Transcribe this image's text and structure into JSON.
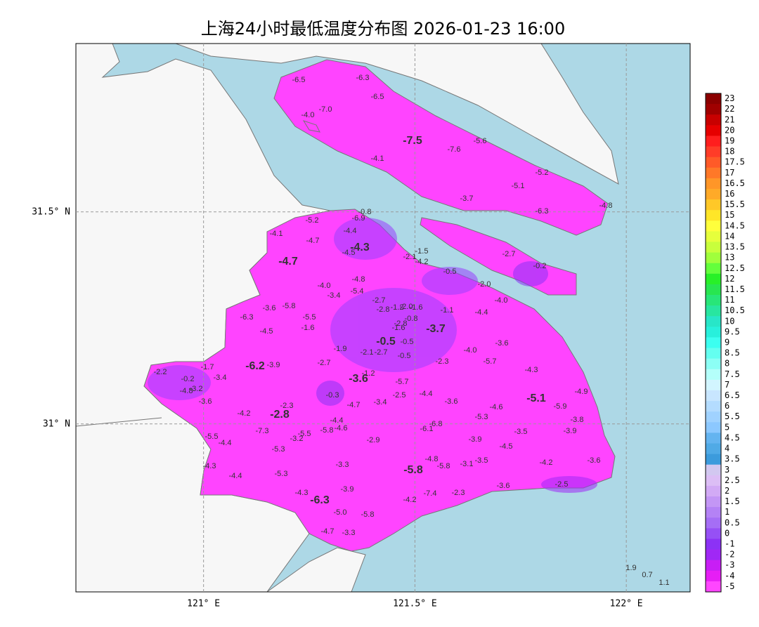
{
  "map": {
    "title": "上海24小时最低温度分布图 2026-01-23 16:00",
    "xlim": [
      120.698,
      122.151
    ],
    "ylim": [
      30.604,
      31.897
    ],
    "xticks": [
      {
        "value": 121,
        "label": "121° E"
      },
      {
        "value": 121.5,
        "label": "121.5° E"
      },
      {
        "value": 122,
        "label": "122° E"
      }
    ],
    "yticks": [
      {
        "value": 31,
        "label": "31° N"
      },
      {
        "value": 31.5,
        "label": "31.5° N"
      }
    ],
    "grid": true,
    "stations": [
      "-6.5",
      "-6.3",
      "-6.5",
      "-7.0",
      "-4.0",
      "-7.5",
      "-7.6",
      "-5.6",
      "-4.1",
      "-5.2",
      "-5.1",
      "-3.7",
      "-6.3",
      "-4.8",
      "-0.8",
      "-6.9",
      "-5.2",
      "-4.4",
      "-4.1",
      "-4.7",
      "-4.3",
      "-4.5",
      "-1.5",
      "-2.1",
      "-4.2",
      "-2.7",
      "-0.2",
      "-4.7",
      "-0.5",
      "-4.8",
      "-4.0",
      "-5.4",
      "-3.4",
      "-2.0",
      "-2.7",
      "-4.0",
      "-3.6",
      "-5.8",
      "-2.8",
      "-1.2",
      "-2.0",
      "-1.6",
      "-1.1",
      "-4.4",
      "-6.3",
      "-5.5",
      "-2.8",
      "-0.8",
      "-1.6",
      "-1.6",
      "-4.5",
      "-3.7",
      "-0.5",
      "-0.5",
      "-1.9",
      "-2.1",
      "-2.7",
      "-0.5",
      "-4.0",
      "-3.6",
      "-5.7",
      "-2.3",
      "-4.3",
      "-2.2",
      "-1.7",
      "-6.2",
      "-3.9",
      "-2.7",
      "-3.4",
      "-0.2",
      "-3.6",
      "-1.2",
      "-5.7",
      "-4.8",
      "-3.2",
      "-0.3",
      "-2.5",
      "-4.4",
      "-4.9",
      "-5.1",
      "-3.6",
      "-2.3",
      "-4.7",
      "-3.4",
      "-3.6",
      "-4.6",
      "-5.9",
      "-4.2",
      "-2.8",
      "-5.3",
      "-3.8",
      "-4.4",
      "-6.8",
      "-5.8",
      "-4.6",
      "-6.1",
      "-7.3",
      "-5.5",
      "-3.2",
      "-5.5",
      "-4.4",
      "-3.5",
      "-3.9",
      "-2.9",
      "-3.9",
      "-4.5",
      "-5.3",
      "-4.8",
      "-3.3",
      "-5.8",
      "-5.8",
      "-3.1",
      "-3.5",
      "-4.2",
      "-3.6",
      "-4.3",
      "-4.4",
      "-5.3",
      "-3.9",
      "-3.6",
      "-2.5",
      "-4.3",
      "-7.4",
      "-2.3",
      "-6.3",
      "-4.2",
      "-5.0",
      "-5.8",
      "-4.7",
      "-3.3",
      "1.9",
      "0.7",
      "1.1"
    ],
    "colorbar": {
      "ticks": [
        23,
        22,
        21,
        20,
        19,
        18,
        17.5,
        17,
        16.5,
        16,
        15.5,
        15,
        14.5,
        14,
        13.5,
        13,
        12.5,
        12,
        11.5,
        11,
        10.5,
        10,
        9.5,
        9,
        8.5,
        8,
        7.5,
        7,
        6.5,
        6,
        5.5,
        5,
        4.5,
        4,
        3.5,
        3,
        2.5,
        2,
        1.5,
        1,
        0.5,
        0,
        -1,
        -2,
        -3,
        -4,
        -5
      ],
      "colors": [
        "#8b0000",
        "#a00000",
        "#c80000",
        "#e60000",
        "#ff1e1e",
        "#ff3c28",
        "#ff5a28",
        "#ff7828",
        "#ff9628",
        "#ffaa28",
        "#ffc828",
        "#ffe628",
        "#ffff3c",
        "#e6ff3c",
        "#c8ff3c",
        "#a0ff3c",
        "#64ff3c",
        "#28f028",
        "#28e650",
        "#28e678",
        "#28e6a0",
        "#28e6c8",
        "#28f0dc",
        "#3cfff0",
        "#64fff0",
        "#8cfff5",
        "#b4fffa",
        "#d2f5ff",
        "#c8e6ff",
        "#b4dcff",
        "#a0d2ff",
        "#8cc8ff",
        "#64b4f0",
        "#50aae6",
        "#3c9bdc",
        "#d2c8f0",
        "#dcbef5",
        "#d2aaf5",
        "#c396f5",
        "#b482f5",
        "#a56ef5",
        "#9650f5",
        "#8c32f5",
        "#a028f5",
        "#c81ef5",
        "#e61ef5",
        "#ff46ff"
      ]
    }
  }
}
